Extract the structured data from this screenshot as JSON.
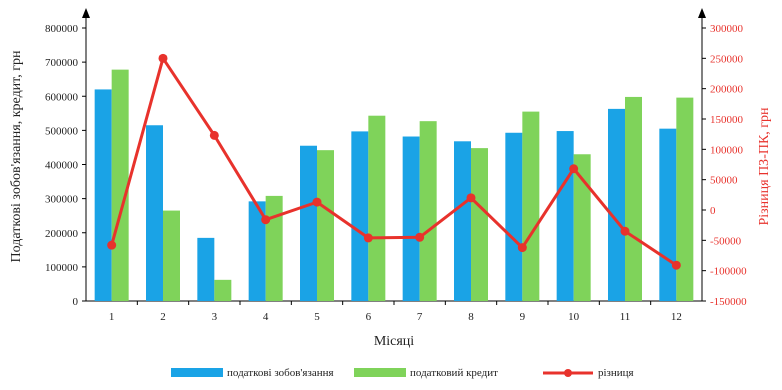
{
  "colors": {
    "liabilities": "#1aa3e6",
    "credit": "#7fd35a",
    "difference": "#e8322c",
    "axis": "#000000"
  },
  "chart_data": {
    "type": "bar",
    "categories": [
      "1",
      "2",
      "3",
      "4",
      "5",
      "6",
      "7",
      "8",
      "9",
      "10",
      "11",
      "12"
    ],
    "xlabel": "Місяці",
    "ylabel": "Податкові зобов'язання, кредит, грн",
    "y2label": "Різниця ПЗ-ПК, грн",
    "ylim": [
      0,
      800000
    ],
    "y2lim": [
      -150000,
      300000
    ],
    "yticks": [
      "0",
      "100000",
      "200000",
      "300000",
      "400000",
      "500000",
      "600000",
      "700000",
      "800000"
    ],
    "y2ticks": [
      "-150000",
      "-100000",
      "-50000",
      "0",
      "50000",
      "100000",
      "150000",
      "200000",
      "250000",
      "300000"
    ],
    "series": [
      {
        "name": "податкові зобов'язання",
        "type": "bar",
        "axis": "left",
        "values": [
          620000,
          515000,
          185000,
          292000,
          455000,
          497000,
          482000,
          468000,
          493000,
          498000,
          563000,
          505000
        ]
      },
      {
        "name": "податковий кредит",
        "type": "bar",
        "axis": "left",
        "values": [
          678000,
          265000,
          62000,
          308000,
          442000,
          543000,
          527000,
          448000,
          555000,
          430000,
          598000,
          596000
        ]
      },
      {
        "name": "різниця",
        "type": "line",
        "axis": "right",
        "values": [
          -58000,
          250000,
          123000,
          -16000,
          13000,
          -46000,
          -45000,
          20000,
          -62000,
          68000,
          -35000,
          -91000
        ]
      }
    ],
    "legend_position": "bottom",
    "grid": false
  }
}
